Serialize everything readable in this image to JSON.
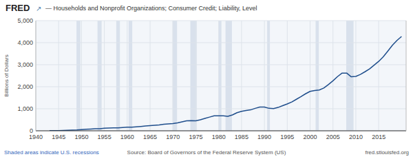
{
  "chart_data": {
    "type": "line",
    "title": "FRED",
    "subtitle": "— Households and Nonprofit Organizations; Consumer Credit; Liability, Level",
    "ylabel": "Billions of Dollars",
    "annotations": [
      "↗",
      "Shaded areas indicate U.S. recessions",
      "Source: Board of Governors of the Federal Reserve System (US)",
      "fred.stlouisfed.org"
    ],
    "color": "#1f4e8c",
    "grid": true,
    "xlim": [
      1940,
      2021
    ],
    "xticks": [
      1940,
      1945,
      1950,
      1955,
      1960,
      1965,
      1970,
      1975,
      1980,
      1985,
      1990,
      1995,
      2000,
      2005,
      2010,
      2015
    ],
    "ylim": [
      0,
      5000
    ],
    "yticks": [
      0,
      {
        "value": 1000,
        "label": "1,000"
      },
      {
        "value": 2000,
        "label": "2,000"
      },
      {
        "value": 3000,
        "label": "3,000"
      },
      {
        "value": 4000,
        "label": "4,000"
      },
      {
        "value": 5000,
        "label": "5,000"
      }
    ],
    "recession_bands": [
      [
        1948.9,
        1949.75
      ],
      [
        1953.5,
        1954.4
      ],
      [
        1957.6,
        1958.4
      ],
      [
        1960.3,
        1961.1
      ],
      [
        1969.9,
        1970.9
      ],
      [
        1973.8,
        1975.2
      ],
      [
        1980.0,
        1980.6
      ],
      [
        1981.5,
        1982.9
      ],
      [
        1990.6,
        1991.2
      ],
      [
        2001.2,
        2001.9
      ],
      [
        2007.9,
        2009.5
      ]
    ],
    "x": [
      1943,
      1944,
      1945,
      1946,
      1947,
      1948,
      1949,
      1950,
      1951,
      1952,
      1953,
      1954,
      1955,
      1956,
      1957,
      1958,
      1959,
      1960,
      1961,
      1962,
      1963,
      1964,
      1965,
      1966,
      1967,
      1968,
      1969,
      1970,
      1971,
      1972,
      1973,
      1974,
      1975,
      1976,
      1977,
      1978,
      1979,
      1980,
      1981,
      1982,
      1983,
      1984,
      1985,
      1986,
      1987,
      1988,
      1989,
      1990,
      1991,
      1992,
      1993,
      1994,
      1995,
      1996,
      1997,
      1998,
      1999,
      2000,
      2001,
      2002,
      2003,
      2004,
      2005,
      2006,
      2007,
      2008,
      2009,
      2010,
      2011,
      2012,
      2013,
      2014,
      2015,
      2016,
      2017,
      2018,
      2019,
      2020
    ],
    "values": [
      6,
      7,
      8,
      15,
      25,
      35,
      38,
      55,
      68,
      80,
      95,
      95,
      115,
      125,
      130,
      130,
      152,
      162,
      162,
      178,
      195,
      216,
      238,
      250,
      263,
      294,
      316,
      325,
      358,
      405,
      455,
      460,
      450,
      498,
      560,
      622,
      678,
      680,
      680,
      658,
      720,
      820,
      880,
      920,
      950,
      1020,
      1080,
      1080,
      1020,
      1010,
      1060,
      1140,
      1220,
      1310,
      1430,
      1550,
      1680,
      1790,
      1830,
      1850,
      1940,
      2100,
      2270,
      2460,
      2620,
      2620,
      2450,
      2470,
      2560,
      2680,
      2810,
      2980,
      3150,
      3360,
      3620,
      3880,
      4100,
      4280
    ]
  }
}
